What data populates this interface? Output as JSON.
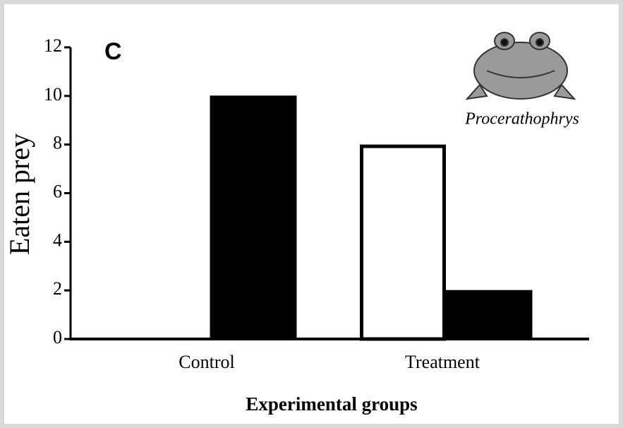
{
  "chart_data": {
    "type": "bar",
    "panel_label": "C",
    "annotation": "Procerathophrys",
    "x_label": "Experimental groups",
    "y_label": "Eaten prey",
    "categories": [
      "Control",
      "Treatment"
    ],
    "series": [
      {
        "color": "#ffffff",
        "values": [
          0,
          8
        ]
      },
      {
        "color": "#000000",
        "values": [
          10,
          2
        ]
      }
    ],
    "ylim": [
      0,
      12
    ],
    "yticks": [
      0,
      2,
      4,
      6,
      8,
      10,
      12
    ]
  }
}
